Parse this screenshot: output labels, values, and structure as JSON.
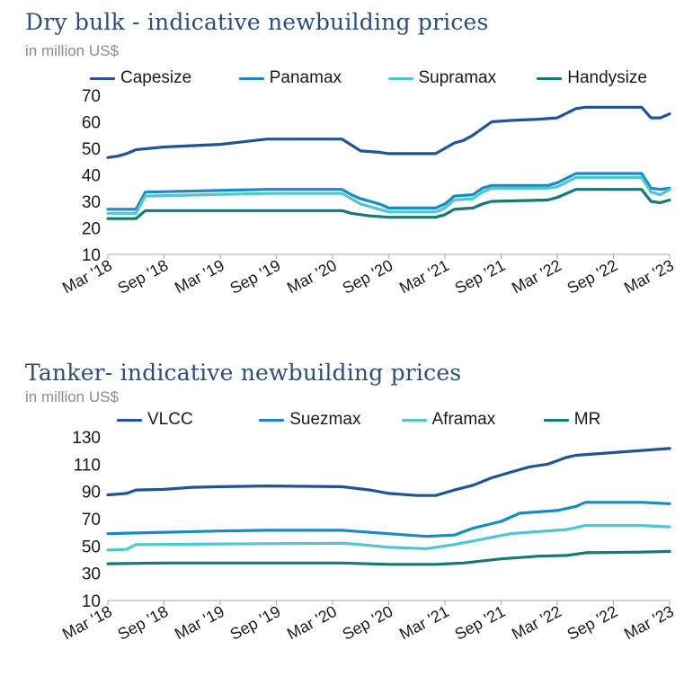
{
  "chart_data": [
    {
      "type": "line",
      "title": "Dry bulk - indicative newbuilding prices",
      "subtitle": "in million US$",
      "ylim": [
        10,
        70
      ],
      "yticks": [
        10,
        20,
        30,
        40,
        50,
        60,
        70
      ],
      "xlim": [
        "2018-03",
        "2023-03"
      ],
      "xtick_labels": [
        "Mar '18",
        "Sep '18",
        "Mar '19",
        "Sep '19",
        "Mar '20",
        "Sep '20",
        "Mar '21",
        "Sep '21",
        "Mar '22",
        "Sep '22",
        "Mar '23"
      ],
      "legend_position": "top",
      "grid": false,
      "series": [
        {
          "name": "Capesize",
          "color": "#1f5596",
          "x": [
            "2018-03",
            "2018-04",
            "2018-05",
            "2018-06",
            "2018-09",
            "2019-03",
            "2019-08",
            "2020-04",
            "2020-06",
            "2020-08",
            "2020-09",
            "2021-02",
            "2021-03",
            "2021-04",
            "2021-05",
            "2021-06",
            "2021-08",
            "2021-10",
            "2022-01",
            "2022-03",
            "2022-05",
            "2022-06",
            "2022-12",
            "2023-01",
            "2023-02",
            "2023-03"
          ],
          "y": [
            46.5,
            47,
            48,
            49.5,
            50.5,
            51.5,
            53.5,
            53.5,
            49,
            48.5,
            48,
            48,
            50,
            52,
            53,
            55,
            60,
            60.5,
            61,
            61.5,
            65,
            65.5,
            65.5,
            61.5,
            61.5,
            63
          ]
        },
        {
          "name": "Panamax",
          "color": "#1a8ac4",
          "x": [
            "2018-03",
            "2018-06",
            "2018-07",
            "2019-08",
            "2020-04",
            "2020-05",
            "2020-06",
            "2020-08",
            "2020-09",
            "2021-02",
            "2021-03",
            "2021-04",
            "2021-06",
            "2021-07",
            "2021-08",
            "2022-02",
            "2022-03",
            "2022-05",
            "2022-12",
            "2023-01",
            "2023-02",
            "2023-03"
          ],
          "y": [
            27,
            27,
            33.5,
            34.5,
            34.5,
            32.5,
            31,
            29,
            27.5,
            27.5,
            29,
            32,
            32.5,
            35,
            36,
            36,
            37,
            40.5,
            40.5,
            35,
            34.5,
            35
          ]
        },
        {
          "name": "Supramax",
          "color": "#4fc6d2",
          "x": [
            "2018-03",
            "2018-06",
            "2018-07",
            "2019-08",
            "2020-04",
            "2020-05",
            "2020-06",
            "2020-08",
            "2020-09",
            "2021-02",
            "2021-03",
            "2021-04",
            "2021-06",
            "2021-07",
            "2021-08",
            "2022-02",
            "2022-03",
            "2022-05",
            "2022-12",
            "2023-01",
            "2023-02",
            "2023-03"
          ],
          "y": [
            25.5,
            25.5,
            32,
            33,
            33,
            31,
            29,
            27,
            26,
            26,
            27.5,
            30.5,
            31,
            33.5,
            35,
            35,
            35.5,
            39,
            39,
            33.5,
            32.5,
            34.5
          ]
        },
        {
          "name": "Handysize",
          "color": "#127b72",
          "x": [
            "2018-03",
            "2018-06",
            "2018-07",
            "2020-04",
            "2020-05",
            "2020-07",
            "2020-09",
            "2021-02",
            "2021-03",
            "2021-04",
            "2021-06",
            "2021-07",
            "2021-08",
            "2022-02",
            "2022-03",
            "2022-05",
            "2022-12",
            "2023-01",
            "2023-02",
            "2023-03"
          ],
          "y": [
            23.5,
            23.5,
            26.5,
            26.5,
            25.5,
            24.5,
            24,
            24,
            25,
            27,
            27.5,
            29,
            30,
            30.5,
            31.5,
            34.5,
            34.5,
            30,
            29.5,
            30.5
          ]
        }
      ]
    },
    {
      "type": "line",
      "title": "Tanker- indicative newbuilding prices",
      "subtitle": "in million US$",
      "ylim": [
        10,
        130
      ],
      "yticks": [
        10,
        30,
        50,
        70,
        90,
        110,
        130
      ],
      "xlim": [
        "2018-03",
        "2023-03"
      ],
      "xtick_labels": [
        "Mar '18",
        "Sep '18",
        "Mar '19",
        "Sep '19",
        "Mar '20",
        "Sep '20",
        "Mar '21",
        "Sep '21",
        "Mar '22",
        "Sep '22",
        "Mar '23"
      ],
      "legend_position": "top",
      "grid": false,
      "series": [
        {
          "name": "VLCC",
          "color": "#1f5596",
          "x": [
            "2018-03",
            "2018-05",
            "2018-06",
            "2018-09",
            "2018-12",
            "2019-03",
            "2019-08",
            "2020-04",
            "2020-07",
            "2020-09",
            "2020-12",
            "2021-02",
            "2021-04",
            "2021-06",
            "2021-08",
            "2021-10",
            "2021-12",
            "2022-02",
            "2022-04",
            "2022-05",
            "2023-03"
          ],
          "y": [
            87.5,
            88.5,
            91,
            91.5,
            93,
            93.5,
            94,
            93.5,
            91,
            88.5,
            87,
            87,
            91,
            94.5,
            100,
            104,
            108,
            110,
            115,
            116.5,
            121.5
          ]
        },
        {
          "name": "Suezmax",
          "color": "#1a8ac4",
          "x": [
            "2018-03",
            "2018-06",
            "2019-03",
            "2019-08",
            "2020-04",
            "2020-09",
            "2021-01",
            "2021-04",
            "2021-06",
            "2021-09",
            "2021-11",
            "2022-03",
            "2022-05",
            "2022-06",
            "2022-12",
            "2023-03"
          ],
          "y": [
            59,
            59.5,
            61,
            61.5,
            61.5,
            59,
            57,
            58,
            63,
            68,
            74,
            76,
            79,
            82,
            82,
            81
          ]
        },
        {
          "name": "Aframax",
          "color": "#4fc6d2",
          "x": [
            "2018-03",
            "2018-05",
            "2018-06",
            "2019-03",
            "2020-04",
            "2020-06",
            "2020-09",
            "2021-01",
            "2021-04",
            "2021-07",
            "2021-10",
            "2022-01",
            "2022-04",
            "2022-06",
            "2022-12",
            "2023-03"
          ],
          "y": [
            47,
            47.5,
            51,
            51.5,
            52,
            51,
            49,
            48,
            51,
            55,
            59,
            60.5,
            62,
            65,
            65,
            64
          ]
        },
        {
          "name": "MR",
          "color": "#127b72",
          "x": [
            "2018-03",
            "2018-09",
            "2019-03",
            "2020-04",
            "2020-09",
            "2021-02",
            "2021-05",
            "2021-09",
            "2022-01",
            "2022-04",
            "2022-06",
            "2022-12",
            "2023-03"
          ],
          "y": [
            37,
            37.5,
            37.5,
            37.5,
            36.5,
            36.5,
            37.5,
            40.5,
            42.5,
            43,
            45,
            45.5,
            46
          ]
        }
      ]
    }
  ]
}
